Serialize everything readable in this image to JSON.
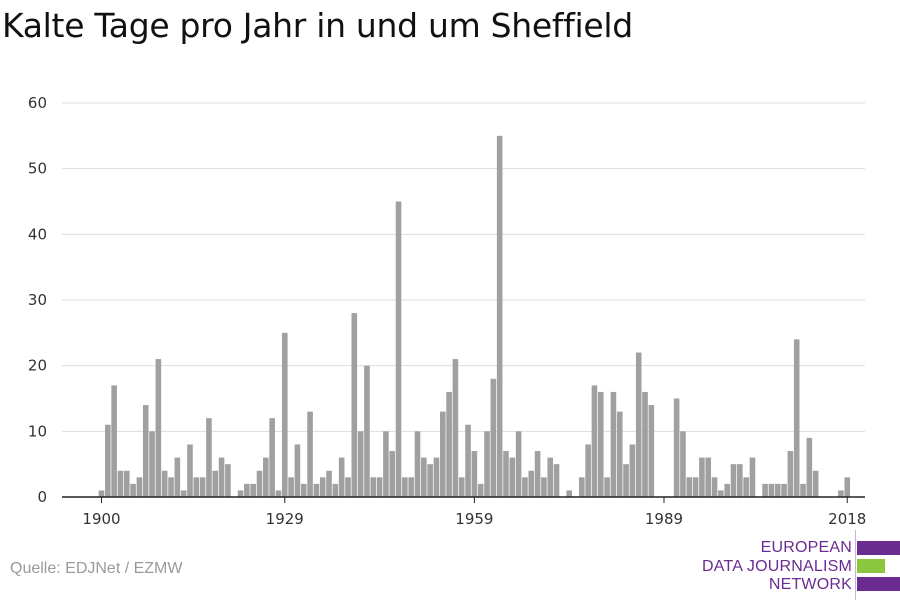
{
  "title": "Kalte Tage pro Jahr in und um Sheffield",
  "source": "Quelle: EDJNet / EZMW",
  "logo": {
    "lines": [
      "EUROPEAN",
      "DATA JOURNALISM",
      "NETWORK"
    ],
    "colors": {
      "purple": "#6a2c91",
      "green": "#8cc63f"
    }
  },
  "chart_data": {
    "type": "bar",
    "title": "Kalte Tage pro Jahr in und um Sheffield",
    "xlabel": "",
    "ylabel": "",
    "ylim": [
      0,
      60
    ],
    "yticks": [
      0,
      10,
      20,
      30,
      40,
      50,
      60
    ],
    "xticks": [
      1900,
      1929,
      1959,
      1989,
      2018
    ],
    "grid": true,
    "bar_color": "#a0a0a0",
    "x": [
      1900,
      1901,
      1902,
      1903,
      1904,
      1905,
      1906,
      1907,
      1908,
      1909,
      1910,
      1911,
      1912,
      1913,
      1914,
      1915,
      1916,
      1917,
      1918,
      1919,
      1920,
      1921,
      1922,
      1923,
      1924,
      1925,
      1926,
      1927,
      1928,
      1929,
      1930,
      1931,
      1932,
      1933,
      1934,
      1935,
      1936,
      1937,
      1938,
      1939,
      1940,
      1941,
      1942,
      1943,
      1944,
      1945,
      1946,
      1947,
      1948,
      1949,
      1950,
      1951,
      1952,
      1953,
      1954,
      1955,
      1956,
      1957,
      1958,
      1959,
      1960,
      1961,
      1962,
      1963,
      1964,
      1965,
      1966,
      1967,
      1968,
      1969,
      1970,
      1971,
      1972,
      1973,
      1974,
      1975,
      1976,
      1977,
      1978,
      1979,
      1980,
      1981,
      1982,
      1983,
      1984,
      1985,
      1986,
      1987,
      1988,
      1989,
      1990,
      1991,
      1992,
      1993,
      1994,
      1995,
      1996,
      1997,
      1998,
      1999,
      2000,
      2001,
      2002,
      2003,
      2004,
      2005,
      2006,
      2007,
      2008,
      2009,
      2010,
      2011,
      2012,
      2013,
      2014,
      2015,
      2016,
      2017,
      2018
    ],
    "values": [
      1,
      11,
      17,
      4,
      4,
      2,
      3,
      14,
      10,
      21,
      4,
      3,
      6,
      1,
      8,
      3,
      3,
      12,
      4,
      6,
      5,
      0,
      1,
      2,
      2,
      4,
      6,
      12,
      1,
      25,
      3,
      8,
      2,
      13,
      2,
      3,
      4,
      2,
      6,
      3,
      28,
      10,
      20,
      3,
      3,
      10,
      7,
      45,
      3,
      3,
      10,
      6,
      5,
      6,
      13,
      16,
      21,
      3,
      11,
      7,
      2,
      10,
      18,
      55,
      7,
      6,
      10,
      3,
      4,
      7,
      3,
      6,
      5,
      0,
      1,
      0,
      3,
      8,
      17,
      16,
      3,
      16,
      13,
      5,
      8,
      22,
      16,
      14,
      0,
      0,
      0,
      15,
      10,
      3,
      3,
      6,
      6,
      3,
      1,
      2,
      5,
      5,
      3,
      6,
      0,
      2,
      2,
      2,
      2,
      7,
      24,
      2,
      9,
      4,
      0,
      0,
      0,
      1,
      3
    ]
  }
}
